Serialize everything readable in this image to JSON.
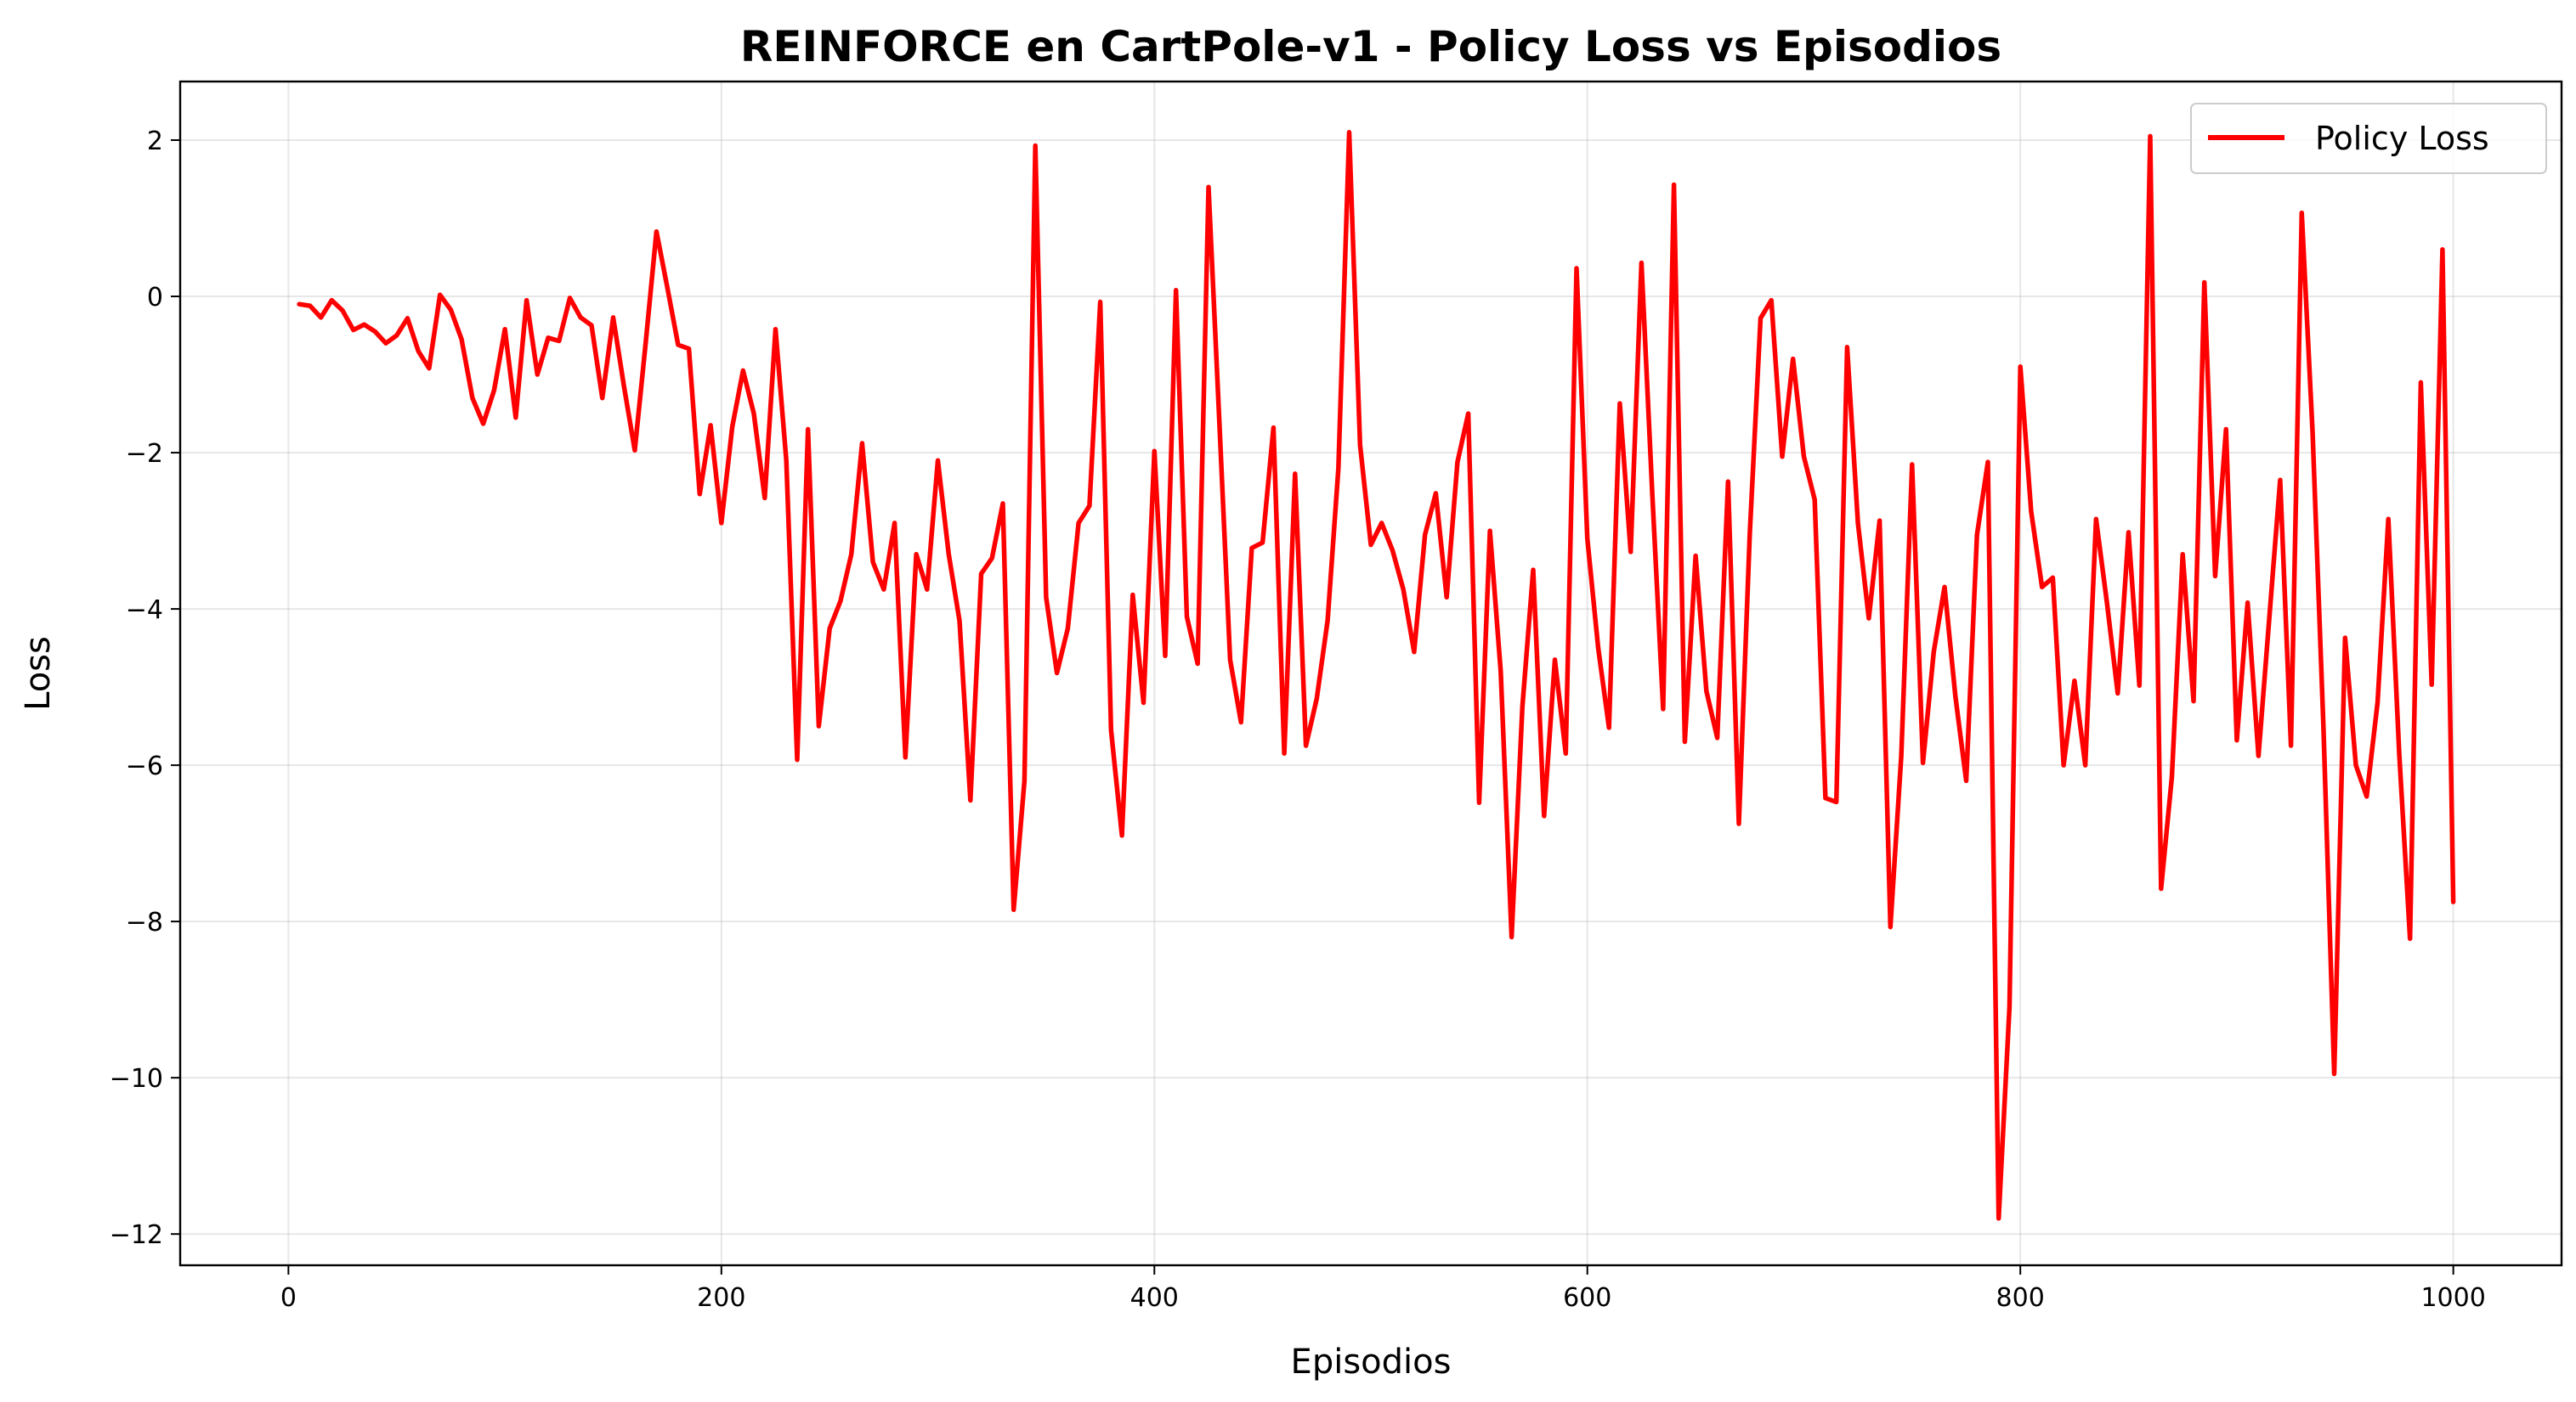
{
  "chart_data": {
    "type": "line",
    "title": "REINFORCE en CartPole-v1 - Policy Loss vs Episodios",
    "xlabel": "Episodios",
    "ylabel": "Loss",
    "xlim": [
      -50,
      1050
    ],
    "ylim": [
      -12.4,
      2.75
    ],
    "x_ticks": [
      0,
      200,
      400,
      600,
      800,
      1000
    ],
    "x_tick_labels": [
      "0",
      "200",
      "400",
      "600",
      "800",
      "1000"
    ],
    "y_ticks": [
      2,
      0,
      -2,
      -4,
      -6,
      -8,
      -10,
      -12
    ],
    "y_tick_labels": [
      "2",
      "0",
      "−2",
      "−4",
      "−6",
      "−8",
      "−10",
      "−12"
    ],
    "grid": true,
    "legend_position": "top-right",
    "series": [
      {
        "name": "Policy Loss",
        "color": "#ff0000",
        "x": [
          5,
          10,
          15,
          20,
          25,
          30,
          35,
          40,
          45,
          50,
          55,
          60,
          65,
          70,
          75,
          80,
          85,
          90,
          95,
          100,
          105,
          110,
          115,
          120,
          125,
          130,
          135,
          140,
          145,
          150,
          155,
          160,
          165,
          170,
          175,
          180,
          185,
          190,
          195,
          200,
          205,
          210,
          215,
          220,
          225,
          230,
          235,
          240,
          245,
          250,
          255,
          260,
          265,
          270,
          275,
          280,
          285,
          290,
          295,
          300,
          305,
          310,
          315,
          320,
          325,
          330,
          335,
          340,
          345,
          350,
          355,
          360,
          365,
          370,
          375,
          380,
          385,
          390,
          395,
          400,
          405,
          410,
          415,
          420,
          425,
          430,
          435,
          440,
          445,
          450,
          455,
          460,
          465,
          470,
          475,
          480,
          485,
          490,
          495,
          500,
          505,
          510,
          515,
          520,
          525,
          530,
          535,
          540,
          545,
          550,
          555,
          560,
          565,
          570,
          575,
          580,
          585,
          590,
          595,
          600,
          605,
          610,
          615,
          620,
          625,
          630,
          635,
          640,
          645,
          650,
          655,
          660,
          665,
          670,
          675,
          680,
          685,
          690,
          695,
          700,
          705,
          710,
          715,
          720,
          725,
          730,
          735,
          740,
          745,
          750,
          755,
          760,
          765,
          770,
          775,
          780,
          785,
          790,
          795,
          800,
          805,
          810,
          815,
          820,
          825,
          830,
          835,
          840,
          845,
          850,
          855,
          860,
          865,
          870,
          875,
          880,
          885,
          890,
          895,
          900,
          905,
          910,
          915,
          920,
          925,
          930,
          935,
          940,
          945,
          950,
          955,
          960,
          965,
          970,
          975,
          980,
          985,
          990,
          995,
          1000
        ],
        "values": [
          -0.1,
          -0.12,
          -0.27,
          -0.05,
          -0.18,
          -0.43,
          -0.36,
          -0.45,
          -0.6,
          -0.5,
          -0.28,
          -0.7,
          -0.92,
          0.02,
          -0.17,
          -0.55,
          -1.3,
          -1.63,
          -1.2,
          -0.42,
          -1.55,
          -0.05,
          -1.0,
          -0.53,
          -0.57,
          -0.02,
          -0.27,
          -0.37,
          -1.3,
          -0.27,
          -1.15,
          -1.97,
          -0.6,
          0.83,
          0.12,
          -0.62,
          -0.67,
          -2.53,
          -1.65,
          -2.9,
          -1.67,
          -0.95,
          -1.5,
          -2.58,
          -0.42,
          -2.1,
          -5.93,
          -1.7,
          -5.5,
          -4.25,
          -3.9,
          -3.3,
          -1.88,
          -3.4,
          -3.75,
          -2.9,
          -5.9,
          -3.3,
          -3.75,
          -2.1,
          -3.3,
          -4.15,
          -6.45,
          -3.55,
          -3.35,
          -2.65,
          -7.85,
          -6.2,
          1.93,
          -3.85,
          -4.82,
          -4.25,
          -2.9,
          -2.68,
          -0.07,
          -5.55,
          -6.9,
          -3.82,
          -5.2,
          -1.98,
          -4.6,
          0.08,
          -4.1,
          -4.7,
          1.4,
          -1.6,
          -4.65,
          -5.45,
          -3.22,
          -3.15,
          -1.68,
          -5.85,
          -2.27,
          -5.75,
          -5.15,
          -4.15,
          -2.2,
          2.1,
          -1.9,
          -3.18,
          -2.9,
          -3.25,
          -3.75,
          -4.55,
          -3.05,
          -2.52,
          -3.85,
          -2.12,
          -1.5,
          -6.48,
          -3.0,
          -4.8,
          -8.2,
          -5.25,
          -3.5,
          -6.65,
          -4.65,
          -5.85,
          0.36,
          -3.1,
          -4.5,
          -5.52,
          -1.37,
          -3.27,
          0.43,
          -2.52,
          -5.28,
          1.43,
          -5.7,
          -3.32,
          -5.05,
          -5.65,
          -2.37,
          -6.75,
          -3.05,
          -0.28,
          -0.05,
          -2.05,
          -0.8,
          -2.05,
          -2.6,
          -6.42,
          -6.47,
          -0.65,
          -2.9,
          -4.12,
          -2.87,
          -8.07,
          -5.88,
          -2.15,
          -5.97,
          -4.55,
          -3.72,
          -5.12,
          -6.2,
          -3.05,
          -2.12,
          -11.8,
          -9.1,
          -0.9,
          -2.75,
          -3.72,
          -3.6,
          -6.0,
          -4.92,
          -6.0,
          -2.85,
          -3.92,
          -5.08,
          -3.02,
          -4.98,
          2.05,
          -7.58,
          -6.15,
          -3.3,
          -5.18,
          0.18,
          -3.58,
          -1.7,
          -5.68,
          -3.92,
          -5.88,
          -4.12,
          -2.35,
          -5.75,
          1.07,
          -1.75,
          -5.5,
          -9.95,
          -4.37,
          -6.0,
          -6.4,
          -5.2,
          -2.85,
          -5.85,
          -8.22,
          -1.1,
          -4.97,
          0.6,
          -7.75
        ]
      }
    ]
  }
}
